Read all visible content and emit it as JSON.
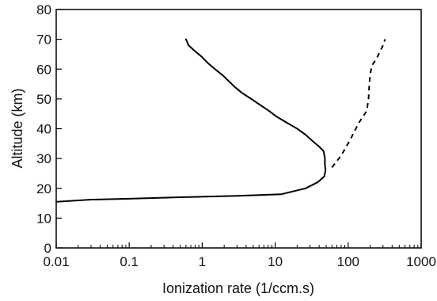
{
  "chart_data": {
    "type": "line",
    "title": "",
    "xlabel": "Ionization rate (1/ccm.s)",
    "ylabel": "Altitude (km)",
    "x_scale": "log",
    "xlim": [
      0.01,
      1000
    ],
    "ylim": [
      0,
      80
    ],
    "x_ticks": [
      "0.01",
      "0.1",
      "1",
      "10",
      "100",
      "1000"
    ],
    "y_ticks": [
      "0",
      "10",
      "20",
      "30",
      "40",
      "50",
      "60",
      "70",
      "80"
    ],
    "grid": false,
    "legend": "none",
    "series": [
      {
        "style": "solid",
        "color": "#000000",
        "points": [
          [
            0.6,
            70
          ],
          [
            0.65,
            68
          ],
          [
            0.8,
            66
          ],
          [
            1.0,
            64
          ],
          [
            1.2,
            62
          ],
          [
            1.5,
            60
          ],
          [
            1.9,
            58
          ],
          [
            2.3,
            56
          ],
          [
            2.8,
            54
          ],
          [
            3.5,
            52
          ],
          [
            4.7,
            50
          ],
          [
            6.2,
            48
          ],
          [
            8.2,
            46
          ],
          [
            10.5,
            44
          ],
          [
            14.5,
            42
          ],
          [
            20,
            40
          ],
          [
            26,
            38
          ],
          [
            32,
            36
          ],
          [
            40,
            34
          ],
          [
            46,
            32.5
          ],
          [
            48,
            30
          ],
          [
            48,
            28
          ],
          [
            49,
            26
          ],
          [
            47,
            24
          ],
          [
            38,
            22
          ],
          [
            26,
            20
          ],
          [
            12,
            18
          ],
          [
            3,
            17.5
          ],
          [
            0.5,
            17
          ],
          [
            0.1,
            16.5
          ],
          [
            0.03,
            16.2
          ],
          [
            0.01,
            15.5
          ]
        ]
      },
      {
        "style": "dashed",
        "color": "#000000",
        "points": [
          [
            60,
            27
          ],
          [
            80,
            31
          ],
          [
            105,
            36
          ],
          [
            140,
            42
          ],
          [
            180,
            46
          ],
          [
            190,
            50
          ],
          [
            195,
            55
          ],
          [
            200,
            58
          ],
          [
            210,
            61
          ],
          [
            250,
            64
          ],
          [
            300,
            68
          ],
          [
            320,
            70
          ]
        ]
      }
    ]
  }
}
